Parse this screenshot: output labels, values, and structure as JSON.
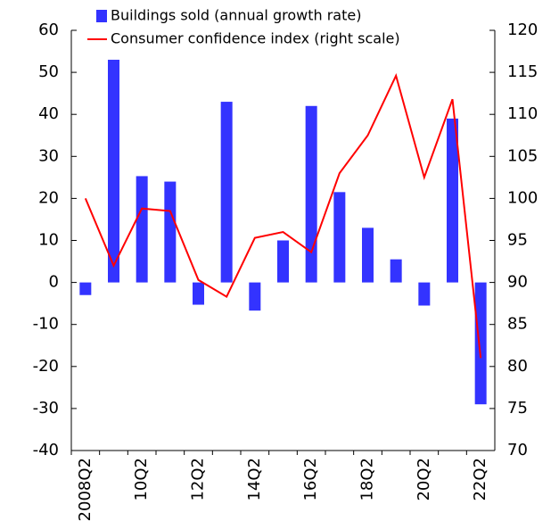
{
  "chart_data": {
    "type": "bar",
    "categories": [
      "2008Q2",
      null,
      "10Q2",
      null,
      "12Q2",
      null,
      "14Q2",
      null,
      "16Q2",
      null,
      "18Q2",
      null,
      "20Q2",
      null,
      "22Q2"
    ],
    "series": [
      {
        "name": "Buildings sold (annual growth rate)",
        "color": "#3333ff",
        "type": "bar",
        "values": [
          -3,
          53,
          25.3,
          24,
          -5.3,
          43,
          -6.7,
          10,
          42,
          21.5,
          13,
          5.5,
          -5.5,
          39,
          -29
        ]
      },
      {
        "name": "Consumer confidence index (right scale)",
        "color": "#ff0000",
        "type": "line",
        "axis": "y2",
        "values": [
          100,
          92,
          98.8,
          98.5,
          90.3,
          88.3,
          95.3,
          96,
          93.6,
          103,
          107.5,
          114.6,
          102.5,
          111.8,
          81
        ]
      }
    ],
    "ylim": [
      -40,
      60
    ],
    "yticks": [
      -40,
      -30,
      -20,
      -10,
      0,
      10,
      20,
      30,
      40,
      50,
      60
    ],
    "y2lim": [
      70,
      120
    ],
    "y2ticks": [
      70,
      75,
      80,
      85,
      90,
      95,
      100,
      105,
      110,
      115,
      120
    ],
    "legend": "top-left",
    "grid": false
  }
}
